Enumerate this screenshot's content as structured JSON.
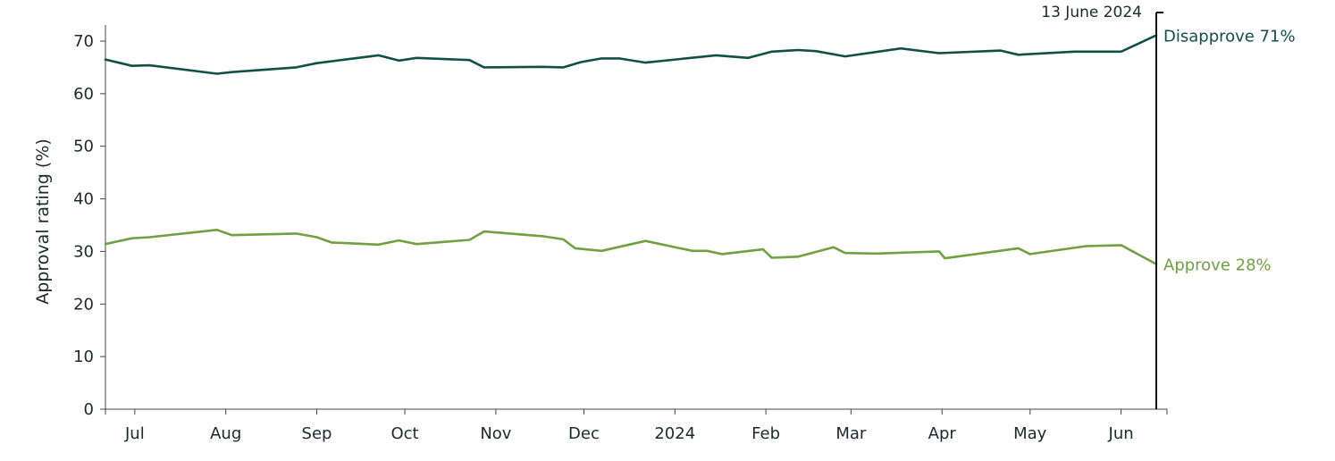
{
  "chart_data": {
    "type": "line",
    "ylabel": "Approval rating (%)",
    "ylim": [
      0,
      70
    ],
    "yticks": [
      0,
      10,
      20,
      30,
      40,
      50,
      60,
      70
    ],
    "xlim": [
      "2023-06-21",
      "2024-06-13"
    ],
    "xticks": [
      {
        "date": "2023-07-01",
        "label": "Jul"
      },
      {
        "date": "2023-08-01",
        "label": "Aug"
      },
      {
        "date": "2023-09-01",
        "label": "Sep"
      },
      {
        "date": "2023-10-01",
        "label": "Oct"
      },
      {
        "date": "2023-11-01",
        "label": "Nov"
      },
      {
        "date": "2023-12-01",
        "label": "Dec"
      },
      {
        "date": "2024-01-01",
        "label": "2024"
      },
      {
        "date": "2024-02-01",
        "label": "Feb"
      },
      {
        "date": "2024-03-01",
        "label": "Mar"
      },
      {
        "date": "2024-04-01",
        "label": "Apr"
      },
      {
        "date": "2024-05-01",
        "label": "May"
      },
      {
        "date": "2024-06-01",
        "label": "Jun"
      }
    ],
    "grid": false,
    "annotation": {
      "date": "2024-06-13",
      "label": "13 June 2024"
    },
    "series": [
      {
        "name": "Disapprove",
        "end_label": "Disapprove 71%",
        "color": "#134e48",
        "points": [
          [
            "2023-06-21",
            66.5
          ],
          [
            "2023-06-30",
            65.3
          ],
          [
            "2023-07-06",
            65.4
          ],
          [
            "2023-07-29",
            63.8
          ],
          [
            "2023-08-03",
            64.1
          ],
          [
            "2023-08-25",
            65.0
          ],
          [
            "2023-09-01",
            65.8
          ],
          [
            "2023-09-22",
            67.3
          ],
          [
            "2023-09-29",
            66.3
          ],
          [
            "2023-10-05",
            66.8
          ],
          [
            "2023-10-23",
            66.4
          ],
          [
            "2023-10-28",
            65.0
          ],
          [
            "2023-11-17",
            65.1
          ],
          [
            "2023-11-24",
            65.0
          ],
          [
            "2023-11-30",
            66.0
          ],
          [
            "2023-12-07",
            66.7
          ],
          [
            "2023-12-13",
            66.7
          ],
          [
            "2023-12-22",
            65.9
          ],
          [
            "2024-01-15",
            67.3
          ],
          [
            "2024-01-26",
            66.8
          ],
          [
            "2024-02-03",
            68.0
          ],
          [
            "2024-02-12",
            68.3
          ],
          [
            "2024-02-18",
            68.1
          ],
          [
            "2024-02-28",
            67.1
          ],
          [
            "2024-03-18",
            68.6
          ],
          [
            "2024-03-31",
            67.7
          ],
          [
            "2024-04-21",
            68.2
          ],
          [
            "2024-04-27",
            67.4
          ],
          [
            "2024-05-16",
            68.0
          ],
          [
            "2024-06-01",
            68.0
          ],
          [
            "2024-06-13",
            71.1
          ]
        ]
      },
      {
        "name": "Approve",
        "end_label": "Approve 28%",
        "color": "#6fa042",
        "points": [
          [
            "2023-06-21",
            31.4
          ],
          [
            "2023-06-30",
            32.5
          ],
          [
            "2023-07-06",
            32.7
          ],
          [
            "2023-07-29",
            34.1
          ],
          [
            "2023-08-03",
            33.1
          ],
          [
            "2023-08-25",
            33.4
          ],
          [
            "2023-09-01",
            32.7
          ],
          [
            "2023-09-06",
            31.7
          ],
          [
            "2023-09-22",
            31.3
          ],
          [
            "2023-09-29",
            32.1
          ],
          [
            "2023-10-05",
            31.4
          ],
          [
            "2023-10-23",
            32.2
          ],
          [
            "2023-10-28",
            33.8
          ],
          [
            "2023-11-17",
            32.9
          ],
          [
            "2023-11-24",
            32.3
          ],
          [
            "2023-11-28",
            30.6
          ],
          [
            "2023-12-07",
            30.1
          ],
          [
            "2023-12-22",
            32.0
          ],
          [
            "2024-01-07",
            30.1
          ],
          [
            "2024-01-12",
            30.1
          ],
          [
            "2024-01-17",
            29.5
          ],
          [
            "2024-01-31",
            30.4
          ],
          [
            "2024-02-03",
            28.8
          ],
          [
            "2024-02-12",
            29.0
          ],
          [
            "2024-02-24",
            30.8
          ],
          [
            "2024-02-28",
            29.7
          ],
          [
            "2024-03-10",
            29.6
          ],
          [
            "2024-03-31",
            30.0
          ],
          [
            "2024-04-02",
            28.7
          ],
          [
            "2024-04-27",
            30.6
          ],
          [
            "2024-05-01",
            29.5
          ],
          [
            "2024-05-20",
            31.0
          ],
          [
            "2024-06-01",
            31.2
          ],
          [
            "2024-06-13",
            27.6
          ]
        ]
      }
    ]
  }
}
